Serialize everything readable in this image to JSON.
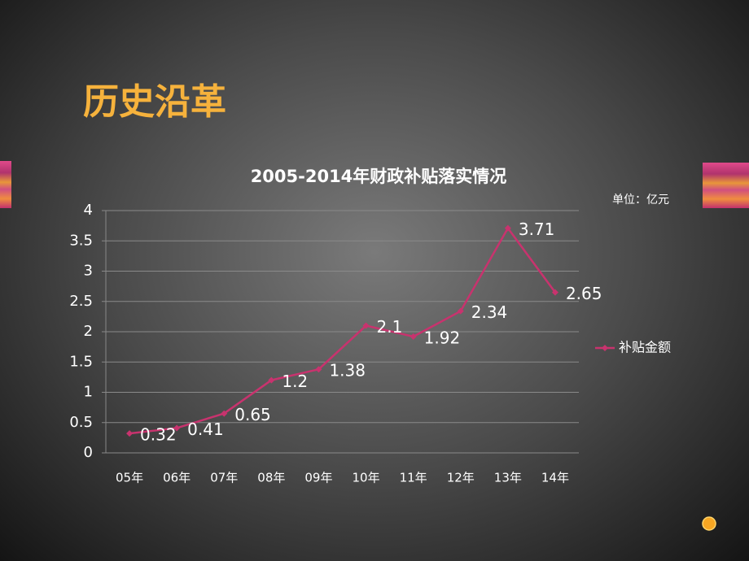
{
  "slide_title": "历史沿革",
  "chart_data": {
    "type": "line",
    "title": "2005-2014年财政补贴落实情况",
    "annotation": "单位：亿元",
    "categories": [
      "05年",
      "06年",
      "07年",
      "08年",
      "09年",
      "10年",
      "11年",
      "12年",
      "13年",
      "14年"
    ],
    "series": [
      {
        "name": "补贴金额",
        "color": "#c8336e",
        "values": [
          0.32,
          0.41,
          0.65,
          1.2,
          1.38,
          2.1,
          1.92,
          2.34,
          3.71,
          2.65
        ]
      }
    ],
    "ylim": [
      0,
      4
    ],
    "yticks": [
      0,
      0.5,
      1,
      1.5,
      2,
      2.5,
      3,
      3.5,
      4
    ],
    "grid": true,
    "legend": "right"
  }
}
